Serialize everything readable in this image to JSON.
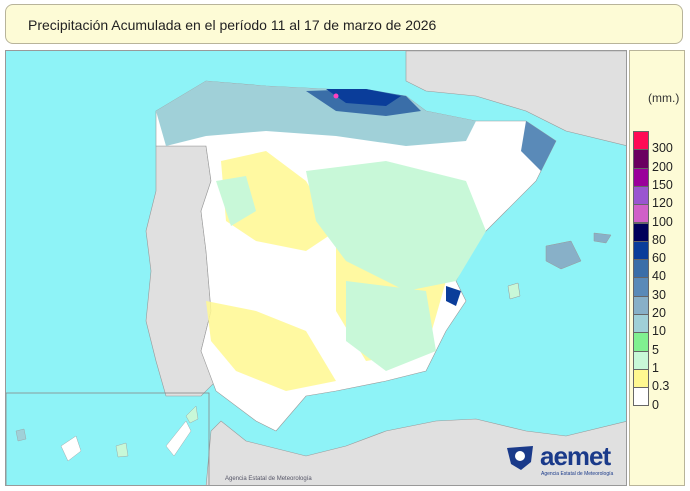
{
  "title": "Precipitación Acumulada en el período 11 al 17 de marzo de 2026",
  "legend": {
    "unit": "(mm.)",
    "labels": [
      "300",
      "200",
      "150",
      "120",
      "100",
      "80",
      "60",
      "40",
      "30",
      "20",
      "10",
      "5",
      "1",
      "0.3",
      "0"
    ],
    "colors": [
      "#ff0a55",
      "#6a0060",
      "#9a009a",
      "#9a55d0",
      "#d060c8",
      "#00005a",
      "#0a3d9a",
      "#3a6ea8",
      "#5a8ab8",
      "#88b0c8",
      "#a0d0d8",
      "#80f090",
      "#c8f8d8",
      "#fff890",
      "#ffffff"
    ]
  },
  "colors": {
    "sea": "#8ef3f7",
    "land": "#e0e0e0",
    "panel": "#fdfbd6"
  },
  "credit": "Agencia Estatal de Meteorología",
  "logo": {
    "name": "aemet",
    "subtitle": "Agencia Estatal de Meteorología"
  }
}
